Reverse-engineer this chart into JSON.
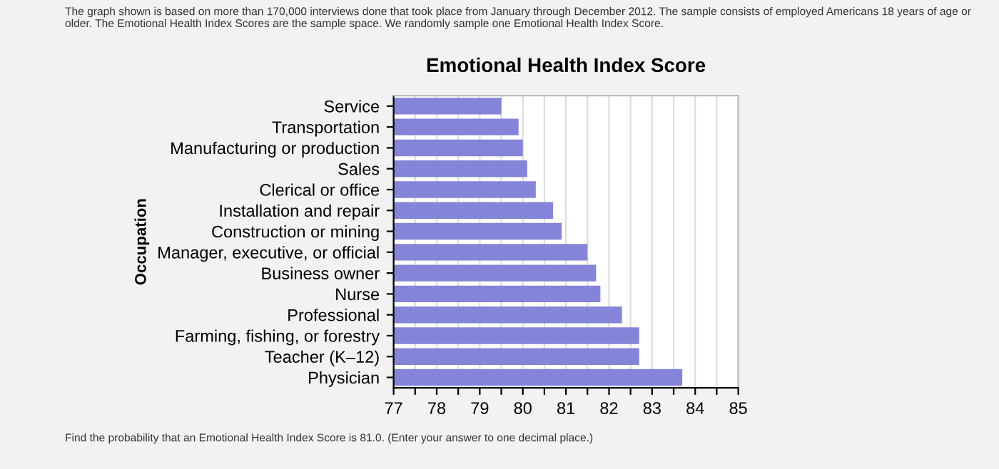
{
  "chart_data": {
    "type": "bar",
    "orientation": "horizontal",
    "title": "Emotional Health Index Score",
    "ylabel": "Occupation",
    "categories": [
      "Service",
      "Transportation",
      "Manufacturing or production",
      "Sales",
      "Clerical or office",
      "Installation and repair",
      "Construction or mining",
      "Manager, executive, or official",
      "Business owner",
      "Nurse",
      "Professional",
      "Farming, fishing, or forestry",
      "Teacher (K–12)",
      "Physician"
    ],
    "values": [
      79.5,
      79.9,
      80.0,
      80.1,
      80.3,
      80.7,
      80.9,
      81.5,
      81.7,
      81.8,
      82.3,
      82.7,
      82.7,
      83.7
    ],
    "color": "#8484d8",
    "xlim": [
      77,
      85
    ],
    "xticks": [
      77,
      {
        "value": 77.5,
        "label": null
      },
      78,
      {
        "value": 78.5,
        "label": null
      },
      79,
      {
        "value": 79.5,
        "label": null
      },
      80,
      {
        "value": 80.5,
        "label": null
      },
      81,
      {
        "value": 81.5,
        "label": null
      },
      82,
      {
        "value": 82.5,
        "label": null
      },
      83,
      {
        "value": 83.5,
        "label": null
      },
      84,
      {
        "value": 84.5,
        "label": null
      },
      85
    ],
    "grid": "x",
    "annotations": [
      "The graph shown is based on more than 170,000 interviews done that took place from January through December 2012. The sample consists of employed Americans 18 years of age or older. The Emotional Health Index Scores are the sample space. We randomly sample one Emotional Health Index Score.",
      "Find the probability that an Emotional Health Index Score is 81.0. (Enter your answer to one decimal place.)"
    ]
  }
}
